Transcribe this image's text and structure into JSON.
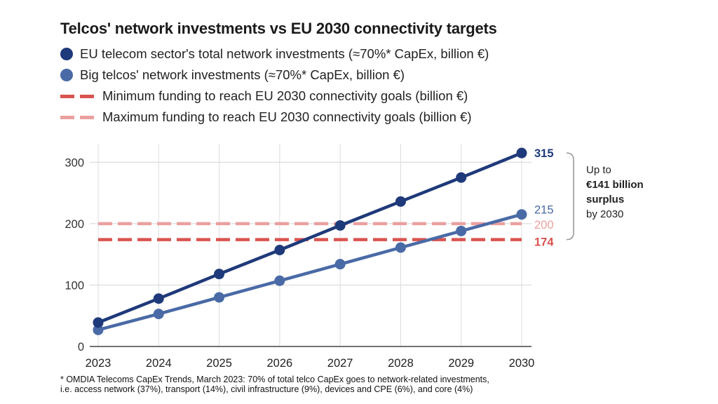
{
  "chart_data": {
    "type": "line",
    "title": "Telcos' network investments vs EU 2030 connectivity targets",
    "x": [
      "2023",
      "2024",
      "2025",
      "2026",
      "2027",
      "2028",
      "2029",
      "2030"
    ],
    "ylim": [
      0,
      330
    ],
    "yticks": [
      "0",
      "100",
      "200",
      "300"
    ],
    "grid": true,
    "legend_position": "top-left",
    "series": [
      {
        "name": "EU telecom sector's total network investments (≈70%* CapEx, billion €)",
        "values": [
          39,
          78,
          118,
          157,
          197,
          236,
          275,
          315
        ],
        "color": "#1f3a7a",
        "style": "line-marker",
        "end_label": "315"
      },
      {
        "name": "Big telcos' network investments (≈70%* CapEx, billion €)",
        "values": [
          27,
          53,
          80,
          107,
          134,
          161,
          188,
          215
        ],
        "color": "#4a6aa6",
        "style": "line-marker",
        "end_label": "215"
      },
      {
        "name": "Minimum funding to reach EU 2030 connectivity goals (billion €)",
        "values": [
          174,
          174,
          174,
          174,
          174,
          174,
          174,
          174
        ],
        "color": "#d9534f",
        "style": "dashed",
        "end_label": "174"
      },
      {
        "name": "Maximum funding to reach EU 2030 connectivity goals (billion €)",
        "values": [
          200,
          200,
          200,
          200,
          200,
          200,
          200,
          200
        ],
        "color": "#eba0a0",
        "style": "dashed",
        "end_label": "200"
      }
    ],
    "annotation": {
      "line1": "Up to",
      "line2": "€141 billion",
      "line3": "surplus",
      "line4": "by 2030"
    },
    "footnote": {
      "line1": "* OMDIA Telecoms CapEx Trends, March 2023: 70% of total telco CapEx goes to network-related investments,",
      "line2": "i.e. access network (37%), transport (14%), civil infrastructure (9%), devices and CPE (6%), and core (4%)"
    }
  }
}
